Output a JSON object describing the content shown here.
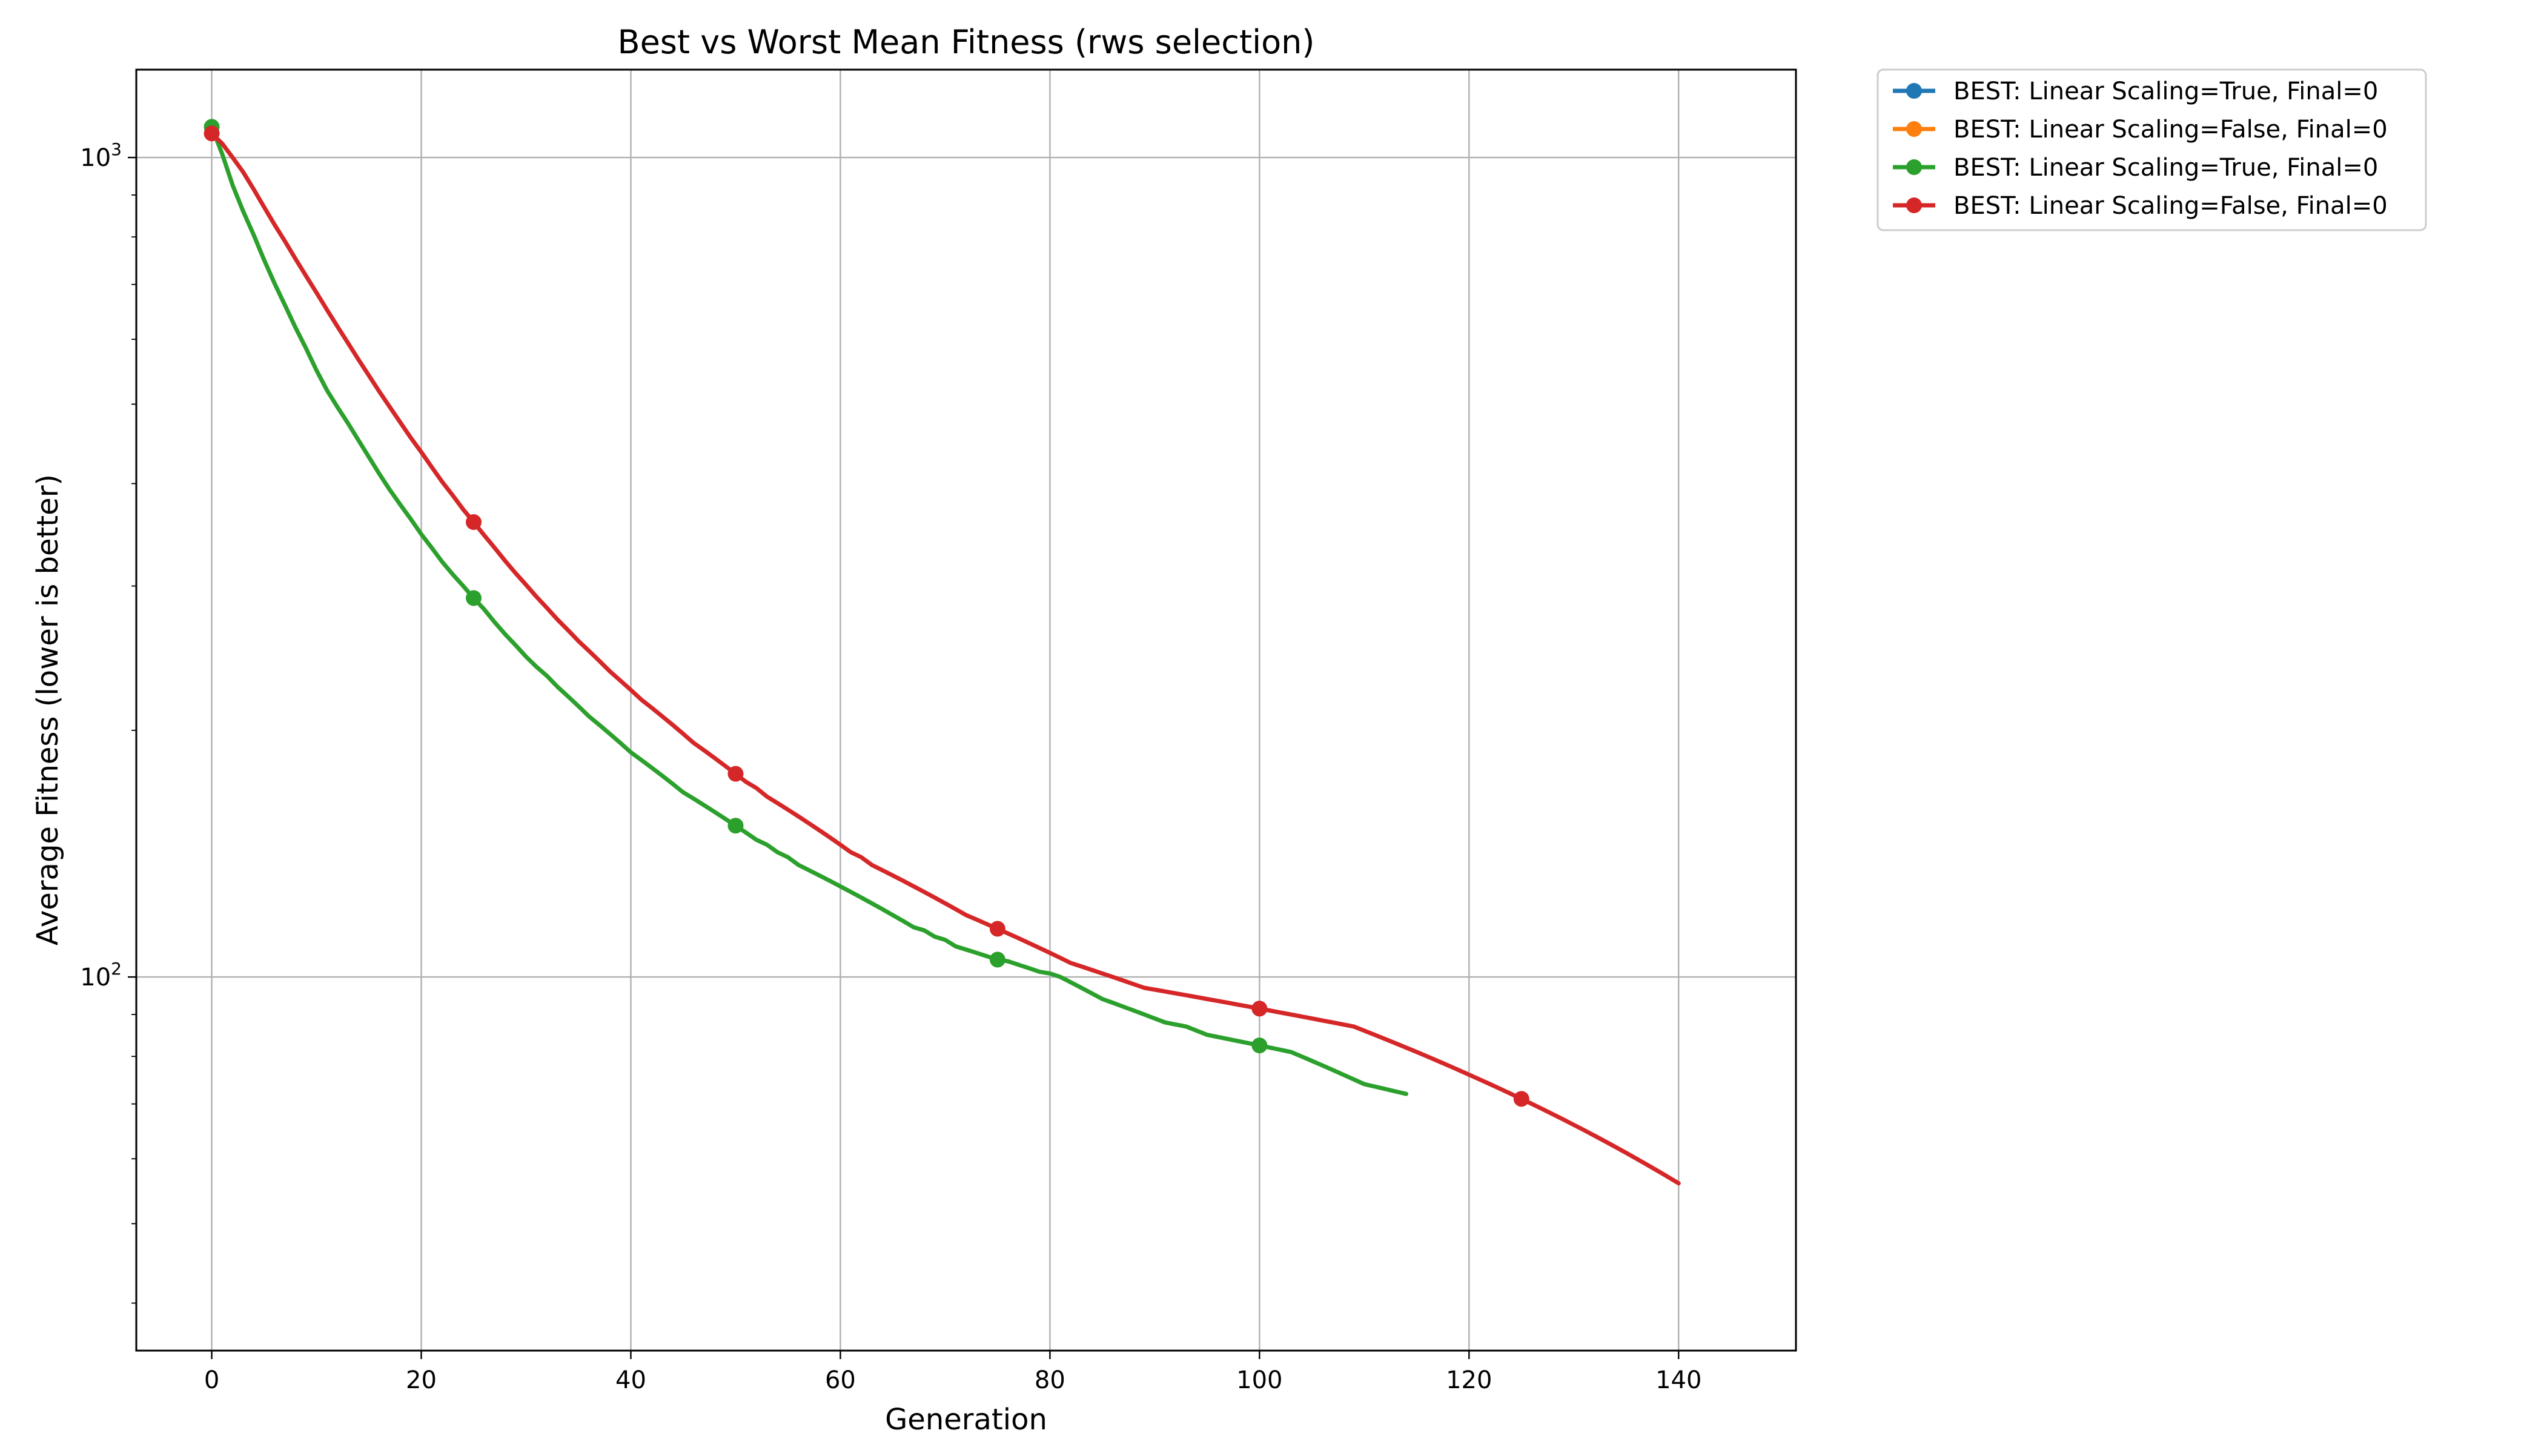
{
  "chart_data": {
    "type": "line",
    "title": "Best vs Worst Mean Fitness (rws selection)",
    "xlabel": "Generation",
    "ylabel": "Average Fitness (lower is better)",
    "xlim": [
      -7.2,
      151.2
    ],
    "ylim": [
      35,
      1280
    ],
    "yscale": "log",
    "grid": true,
    "legend_position": "outside upper right",
    "xticks": [
      0,
      20,
      40,
      60,
      80,
      100,
      120,
      140
    ],
    "xtick_labels": [
      "0",
      "20",
      "40",
      "60",
      "80",
      "100",
      "120",
      "140"
    ],
    "yticks": [
      100,
      1000
    ],
    "ytick_labels": [
      {
        "base": "10",
        "exp": "2"
      },
      {
        "base": "10",
        "exp": "3"
      }
    ],
    "marker_every": 25,
    "series": [
      {
        "name": "BEST: Linear Scaling=True, Final=0",
        "color": "#1f77b4",
        "values": []
      },
      {
        "name": "BEST: Linear Scaling=False, Final=0",
        "color": "#ff7f0e",
        "values": []
      },
      {
        "name": "BEST: Linear Scaling=True, Final=0",
        "color": "#2ca02c",
        "x_start": 0,
        "values": [
          1090,
          1010,
          925,
          860,
          805,
          750,
          702,
          660,
          620,
          585,
          550,
          520,
          496,
          474,
          452,
          431,
          411,
          393,
          377,
          362,
          347,
          334,
          321,
          310,
          300,
          290,
          281,
          271,
          262,
          254,
          246,
          239,
          233,
          226,
          220,
          214,
          208,
          203,
          198,
          193,
          188,
          184,
          180,
          176,
          172,
          168,
          165,
          162,
          159,
          156,
          153,
          150,
          147,
          145,
          142,
          140,
          137,
          135,
          133,
          131,
          129,
          127,
          125,
          123,
          121,
          119,
          117,
          115,
          114,
          112,
          111,
          109,
          108,
          107,
          106,
          105,
          104.5,
          103.5,
          102.5,
          101.5,
          101,
          100,
          98.5,
          97,
          95.5,
          94,
          93,
          92,
          91,
          90,
          89,
          88,
          87.5,
          87,
          86,
          85,
          84.5,
          84,
          83.5,
          83,
          82.5,
          82,
          81.5,
          81,
          80,
          79,
          78,
          77,
          76,
          75,
          74,
          73.5,
          73,
          72.5,
          72
        ]
      },
      {
        "name": "BEST: Linear Scaling=False, Final=0",
        "color": "#d62728",
        "x_start": 0,
        "values": [
          1070,
          1040,
          1000,
          960,
          915,
          870,
          828,
          790,
          752,
          717,
          684,
          652,
          622,
          594,
          567,
          542,
          518,
          496,
          475,
          455,
          437,
          419,
          402,
          387,
          372,
          359,
          346,
          334,
          322,
          311,
          301,
          291,
          282,
          273,
          265,
          257,
          250,
          243,
          236,
          230,
          224,
          218,
          213,
          208,
          203,
          198,
          193,
          189,
          185,
          181,
          177,
          173,
          170,
          166,
          163,
          160,
          157,
          154,
          151,
          148,
          145,
          142,
          140,
          137,
          135,
          133,
          131,
          129,
          127,
          125,
          123,
          121,
          119,
          117.5,
          116,
          114.5,
          113,
          111.5,
          110,
          108.5,
          107,
          105.5,
          104,
          103,
          102,
          101,
          100,
          99,
          98,
          97,
          96.5,
          96,
          95.5,
          95,
          94.5,
          94,
          93.5,
          93,
          92.5,
          92,
          91.5,
          91,
          90.5,
          90,
          89.5,
          89,
          88.5,
          88,
          87.5,
          87,
          86,
          85,
          84,
          83,
          82,
          81,
          80,
          79,
          78,
          77,
          76,
          75,
          74,
          73,
          72,
          71,
          70,
          69,
          68,
          67,
          66,
          65,
          64,
          63,
          62,
          61,
          60,
          59,
          58,
          57,
          56
        ]
      }
    ]
  }
}
